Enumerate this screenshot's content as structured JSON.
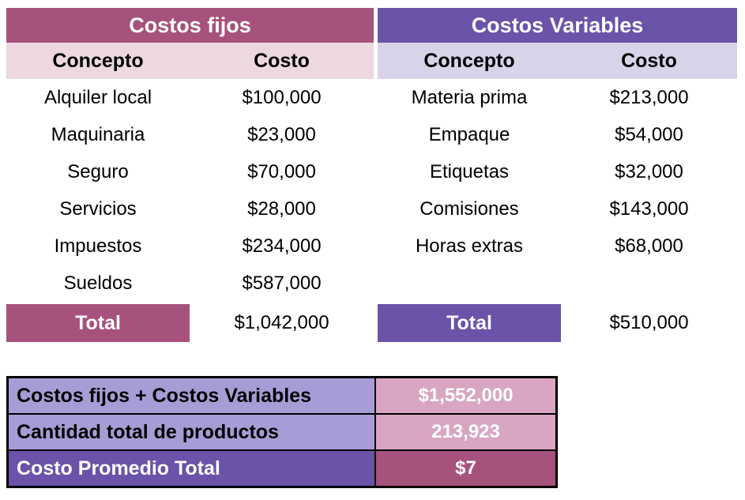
{
  "colors": {
    "mauve": "#A6527D",
    "purple": "#6A53A8",
    "light_pink": "#EDD8E2",
    "light_lavender": "#D8D3E9",
    "light_purple": "#A89CD6",
    "pink_value": "#D8A6C2"
  },
  "fixed_costs": {
    "title": "Costos fijos",
    "col_concept": "Concepto",
    "col_cost": "Costo",
    "rows": [
      {
        "concept": "Alquiler local",
        "cost": "$100,000"
      },
      {
        "concept": "Maquinaria",
        "cost": "$23,000"
      },
      {
        "concept": "Seguro",
        "cost": "$70,000"
      },
      {
        "concept": "Servicios",
        "cost": "$28,000"
      },
      {
        "concept": "Impuestos",
        "cost": "$234,000"
      },
      {
        "concept": "Sueldos",
        "cost": "$587,000"
      }
    ],
    "total_label": "Total",
    "total_value": "$1,042,000"
  },
  "variable_costs": {
    "title": "Costos Variables",
    "col_concept": "Concepto",
    "col_cost": "Costo",
    "rows": [
      {
        "concept": "Materia prima",
        "cost": "$213,000"
      },
      {
        "concept": "Empaque",
        "cost": "$54,000"
      },
      {
        "concept": "Etiquetas",
        "cost": "$32,000"
      },
      {
        "concept": "Comisiones",
        "cost": "$143,000"
      },
      {
        "concept": "Horas extras",
        "cost": "$68,000"
      }
    ],
    "total_label": "Total",
    "total_value": "$510,000"
  },
  "summary": {
    "rows": [
      {
        "label": "Costos fijos + Costos Variables",
        "value": "$1,552,000"
      },
      {
        "label": "Cantidad total de productos",
        "value": "213,923"
      },
      {
        "label": "Costo Promedio Total",
        "value": "$7"
      }
    ]
  }
}
